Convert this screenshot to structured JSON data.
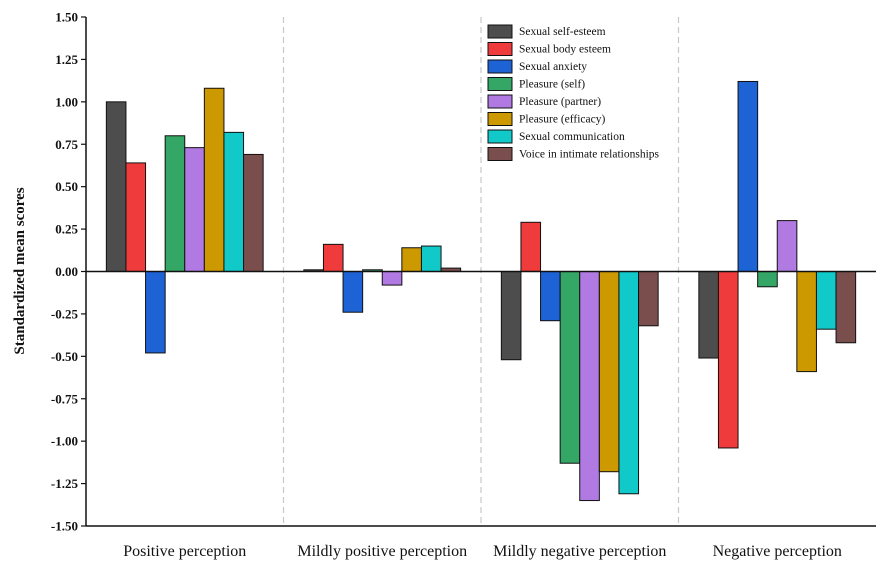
{
  "chart_data": {
    "type": "bar",
    "ylabel": "Standardized mean scores",
    "xlabel": "",
    "ylim": [
      -1.5,
      1.5
    ],
    "yticks": [
      "-1.50",
      "-1.25",
      "-1.00",
      "-0.75",
      "-0.50",
      "-0.25",
      "0.00",
      "0.25",
      "0.50",
      "0.75",
      "1.00",
      "1.25",
      "1.50"
    ],
    "grid": false,
    "legend_position": "top-right",
    "categories": [
      "Positive perception",
      "Mildly positive perception",
      "Mildly negative perception",
      "Negative perception"
    ],
    "series": [
      {
        "name": "Sexual self-esteem",
        "color": "#4d4d4d",
        "values": [
          1.0,
          0.01,
          -0.52,
          -0.51
        ]
      },
      {
        "name": "Sexual body esteem",
        "color": "#ef3b3b",
        "values": [
          0.64,
          0.16,
          0.29,
          -1.04
        ]
      },
      {
        "name": "Sexual anxiety",
        "color": "#1e63d6",
        "values": [
          -0.48,
          -0.24,
          -0.29,
          1.12
        ]
      },
      {
        "name": "Pleasure (self)",
        "color": "#34a665",
        "values": [
          0.8,
          0.01,
          -1.13,
          -0.09
        ]
      },
      {
        "name": "Pleasure (partner)",
        "color": "#b07ae2",
        "values": [
          0.73,
          -0.08,
          -1.35,
          0.3
        ]
      },
      {
        "name": "Pleasure (efficacy)",
        "color": "#cc9900",
        "values": [
          1.08,
          0.14,
          -1.18,
          -0.59
        ]
      },
      {
        "name": "Sexual communication",
        "color": "#12c9c9",
        "values": [
          0.82,
          0.15,
          -1.31,
          -0.34
        ]
      },
      {
        "name": "Voice in intimate relationships",
        "color": "#7b4e4e",
        "values": [
          0.69,
          0.02,
          -0.32,
          -0.42
        ]
      }
    ]
  }
}
